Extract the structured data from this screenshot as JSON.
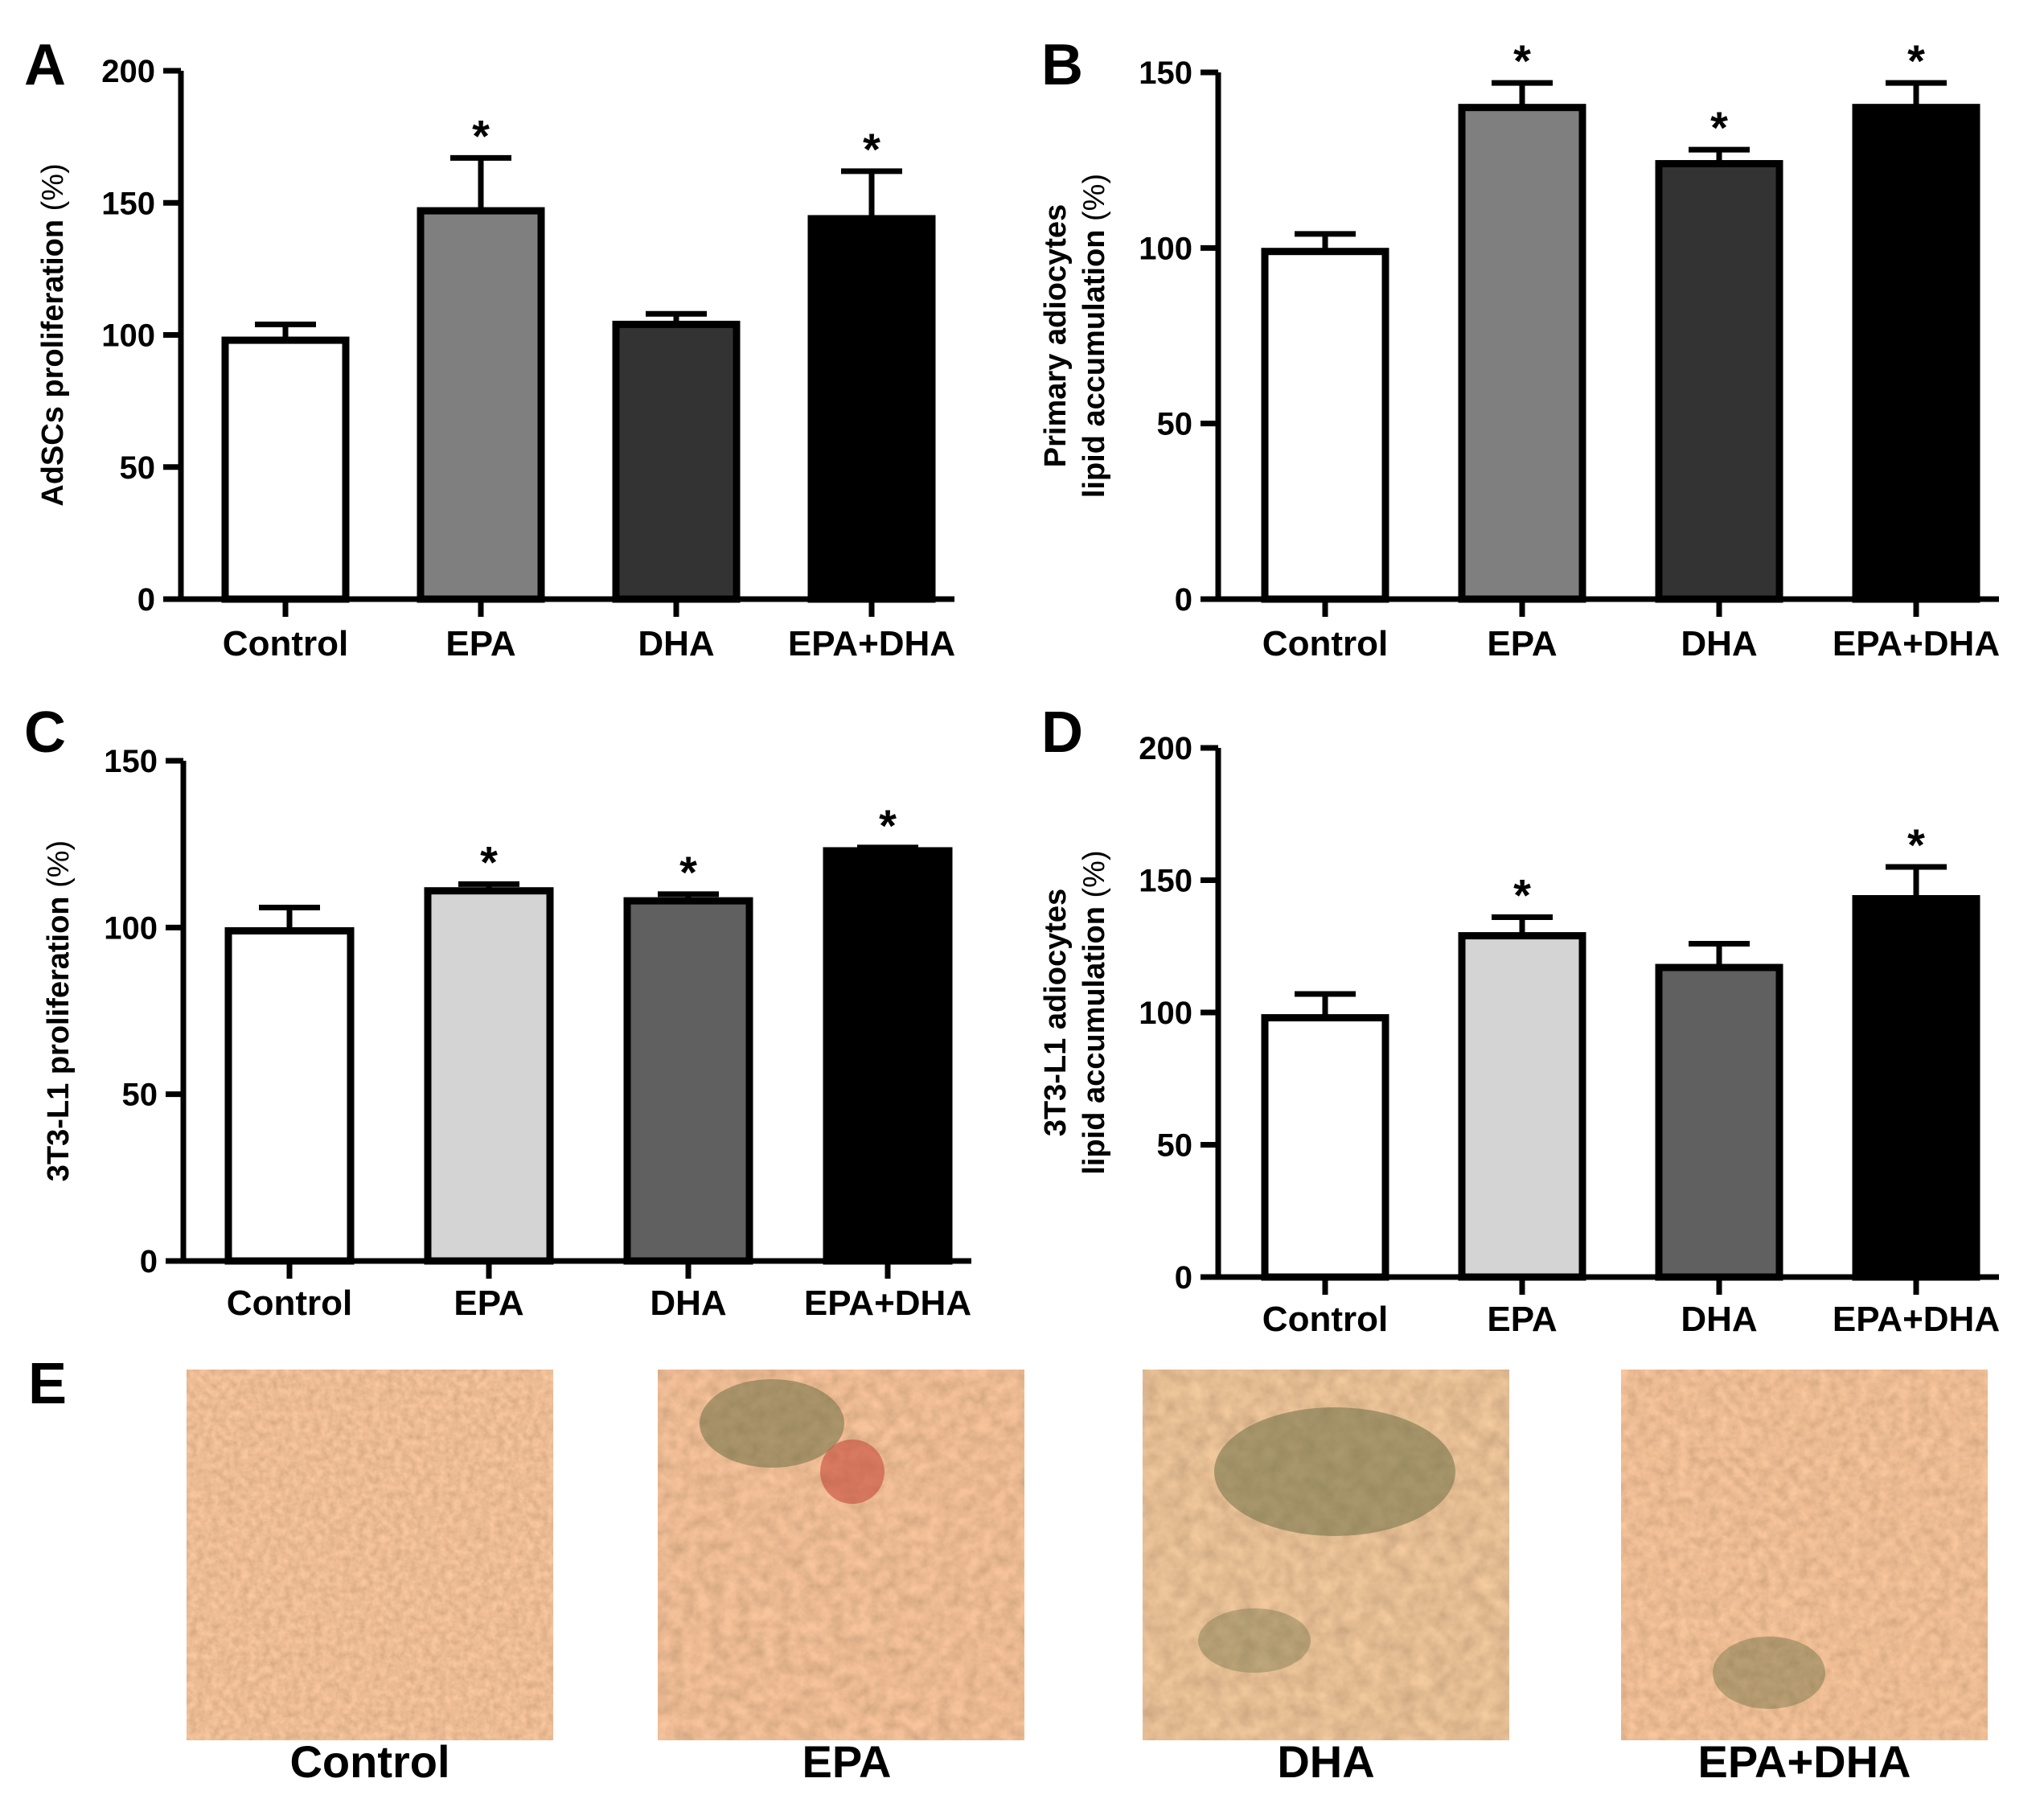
{
  "chart_data": [
    {
      "panel": "A",
      "type": "bar",
      "title": "",
      "xlabel": "",
      "ylabel": "AdSCs proliferation",
      "ylabel_unit": "(%)",
      "categories": [
        "Control",
        "EPA",
        "DHA",
        "EPA+DHA"
      ],
      "values": [
        98,
        147,
        104,
        144
      ],
      "errors": [
        6,
        20,
        4,
        18
      ],
      "significance": [
        "",
        "*",
        "",
        "*"
      ],
      "bar_colors": [
        "#ffffff",
        "#7f7f7f",
        "#333333",
        "#000000"
      ],
      "ylim": [
        0,
        200
      ],
      "yticks": [
        0,
        50,
        100,
        150,
        200
      ],
      "grid": false
    },
    {
      "panel": "B",
      "type": "bar",
      "title": "",
      "xlabel": "",
      "ylabel": "Primary adiocytes",
      "ylabel2": "lipid accumulation",
      "ylabel_unit": "(%)",
      "categories": [
        "Control",
        "EPA",
        "DHA",
        "EPA+DHA"
      ],
      "values": [
        99,
        140,
        124,
        140
      ],
      "errors": [
        5,
        7,
        4,
        7
      ],
      "significance": [
        "",
        "*",
        "*",
        "*"
      ],
      "bar_colors": [
        "#ffffff",
        "#7f7f7f",
        "#333333",
        "#000000"
      ],
      "ylim": [
        0,
        150
      ],
      "yticks": [
        0,
        50,
        100,
        150
      ],
      "grid": false
    },
    {
      "panel": "C",
      "type": "bar",
      "title": "",
      "xlabel": "",
      "ylabel": "3T3-L1 proliferation",
      "ylabel_unit": "(%)",
      "categories": [
        "Control",
        "EPA",
        "DHA",
        "EPA+DHA"
      ],
      "values": [
        99,
        111,
        108,
        123
      ],
      "errors": [
        7,
        2,
        2,
        1
      ],
      "significance": [
        "",
        "*",
        "*",
        "*"
      ],
      "bar_colors": [
        "#ffffff",
        "#d4d4d4",
        "#606060",
        "#000000"
      ],
      "ylim": [
        0,
        150
      ],
      "yticks": [
        0,
        50,
        100,
        150
      ],
      "grid": false
    },
    {
      "panel": "D",
      "type": "bar",
      "title": "",
      "xlabel": "",
      "ylabel": "3T3-L1 adiocytes",
      "ylabel2": "lipid accumulation",
      "ylabel_unit": "(%)",
      "categories": [
        "Control",
        "EPA",
        "DHA",
        "EPA+DHA"
      ],
      "values": [
        98,
        129,
        117,
        143
      ],
      "errors": [
        9,
        7,
        9,
        12
      ],
      "significance": [
        "",
        "*",
        "",
        "*"
      ],
      "bar_colors": [
        "#ffffff",
        "#d4d4d4",
        "#606060",
        "#000000"
      ],
      "ylim": [
        0,
        200
      ],
      "yticks": [
        0,
        50,
        100,
        150,
        200
      ],
      "grid": false
    }
  ],
  "panel_e": {
    "letter": "E",
    "images": [
      {
        "caption": "Control",
        "depicts": "micrograph-oil-red-stain"
      },
      {
        "caption": "EPA",
        "depicts": "micrograph-oil-red-stain"
      },
      {
        "caption": "DHA",
        "depicts": "micrograph-oil-red-stain"
      },
      {
        "caption": "EPA+DHA",
        "depicts": "micrograph-oil-red-stain"
      }
    ],
    "colors": {
      "base": "#e3a77a",
      "cells": "#c95a3a",
      "background_mat": "#6e7045"
    }
  }
}
